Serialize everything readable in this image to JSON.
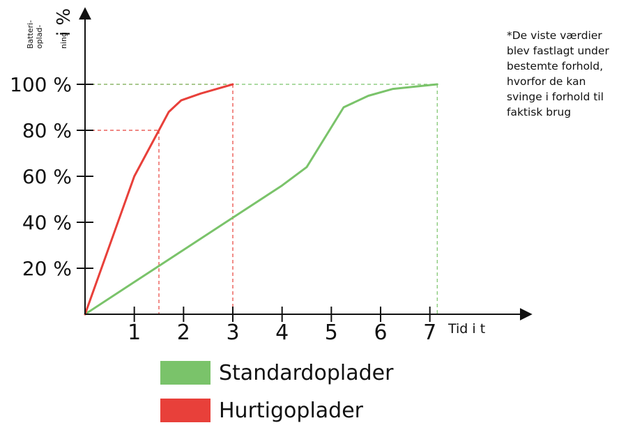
{
  "chart_data": {
    "type": "line",
    "xlabel": "Tid i t",
    "ylabel_small": [
      "Batteri-",
      "oplad-",
      "ning"
    ],
    "ylabel_big": "i %",
    "x_ticks": [
      "1",
      "2",
      "3",
      "4",
      "5",
      "6",
      "7"
    ],
    "y_ticks": [
      "20 %",
      "40 %",
      "60 %",
      "80 %",
      "100 %"
    ],
    "xlim": [
      0,
      9
    ],
    "ylim": [
      0,
      130
    ],
    "grid": false,
    "series": [
      {
        "name": "Standardoplader",
        "color": "#7ac36a",
        "x": [
          0,
          1,
          2,
          3,
          4,
          4.5,
          5.25,
          5.75,
          6.25,
          7.15
        ],
        "y": [
          0,
          14,
          28,
          42,
          56,
          64,
          90,
          95,
          98,
          100
        ]
      },
      {
        "name": "Hurtigoplader",
        "color": "#e8403a",
        "x": [
          0,
          0.5,
          1,
          1.5,
          1.7,
          1.95,
          2.35,
          3
        ],
        "y": [
          0,
          30,
          60,
          80,
          88,
          93,
          96,
          100
        ]
      }
    ],
    "reference_lines": [
      {
        "x": 1.5,
        "y": 80,
        "color": "#e8403a"
      },
      {
        "x": 3,
        "y": 100,
        "color": "#e8403a"
      },
      {
        "x": 7.15,
        "y": 100,
        "color": "#7ac36a"
      }
    ],
    "legend": [
      {
        "label": "Standardoplader",
        "color": "#7ac36a"
      },
      {
        "label": "Hurtigoplader",
        "color": "#e8403a"
      }
    ],
    "note_lines": [
      "*De viste værdier",
      "blev fastlagt under",
      "bestemte forhold,",
      "hvorfor de kan",
      "svinge i forhold til",
      "faktisk brug"
    ]
  }
}
